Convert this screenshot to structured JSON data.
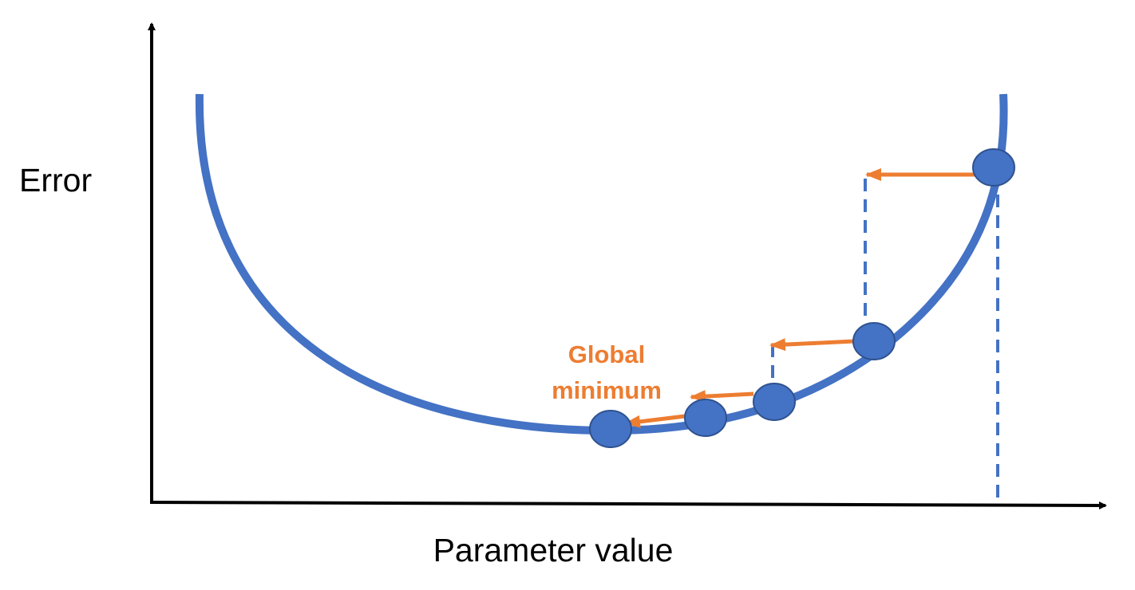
{
  "labels": {
    "y_axis": "Error",
    "x_axis": "Parameter value",
    "annotation_line1": "Global",
    "annotation_line2": "minimum"
  },
  "colors": {
    "curve": "#4472c4",
    "point_fill": "#4472c4",
    "point_stroke": "#2f528f",
    "step_arrow": "#ed7d31",
    "annotation": "#ed7d31",
    "guide_line": "#4472c4",
    "axis": "#000000"
  },
  "icons": {
    "axis_end": "arrowhead-icon",
    "step_end": "arrowhead-icon"
  }
}
